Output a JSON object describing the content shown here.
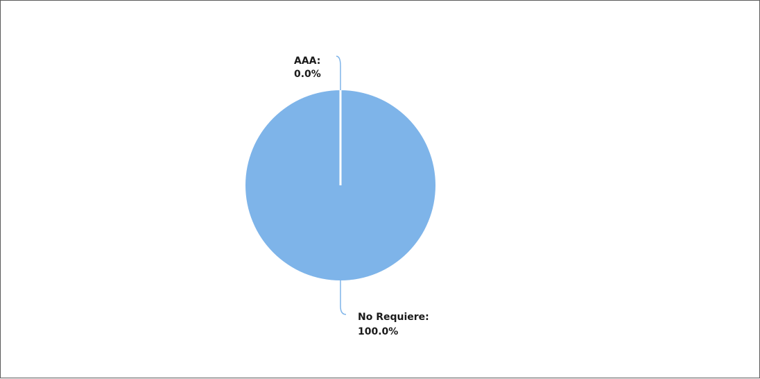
{
  "chart_data": {
    "type": "pie",
    "slices": [
      {
        "label": "AAA:",
        "value": 0.0,
        "percent_label": "0.0%"
      },
      {
        "label": "No Requiere:",
        "value": 100.0,
        "percent_label": "100.0%"
      }
    ],
    "slice_color": "#7eb4e9",
    "separator_color": "#ffffff",
    "leader_line_color": "#7eb4e9",
    "legend": "none"
  }
}
